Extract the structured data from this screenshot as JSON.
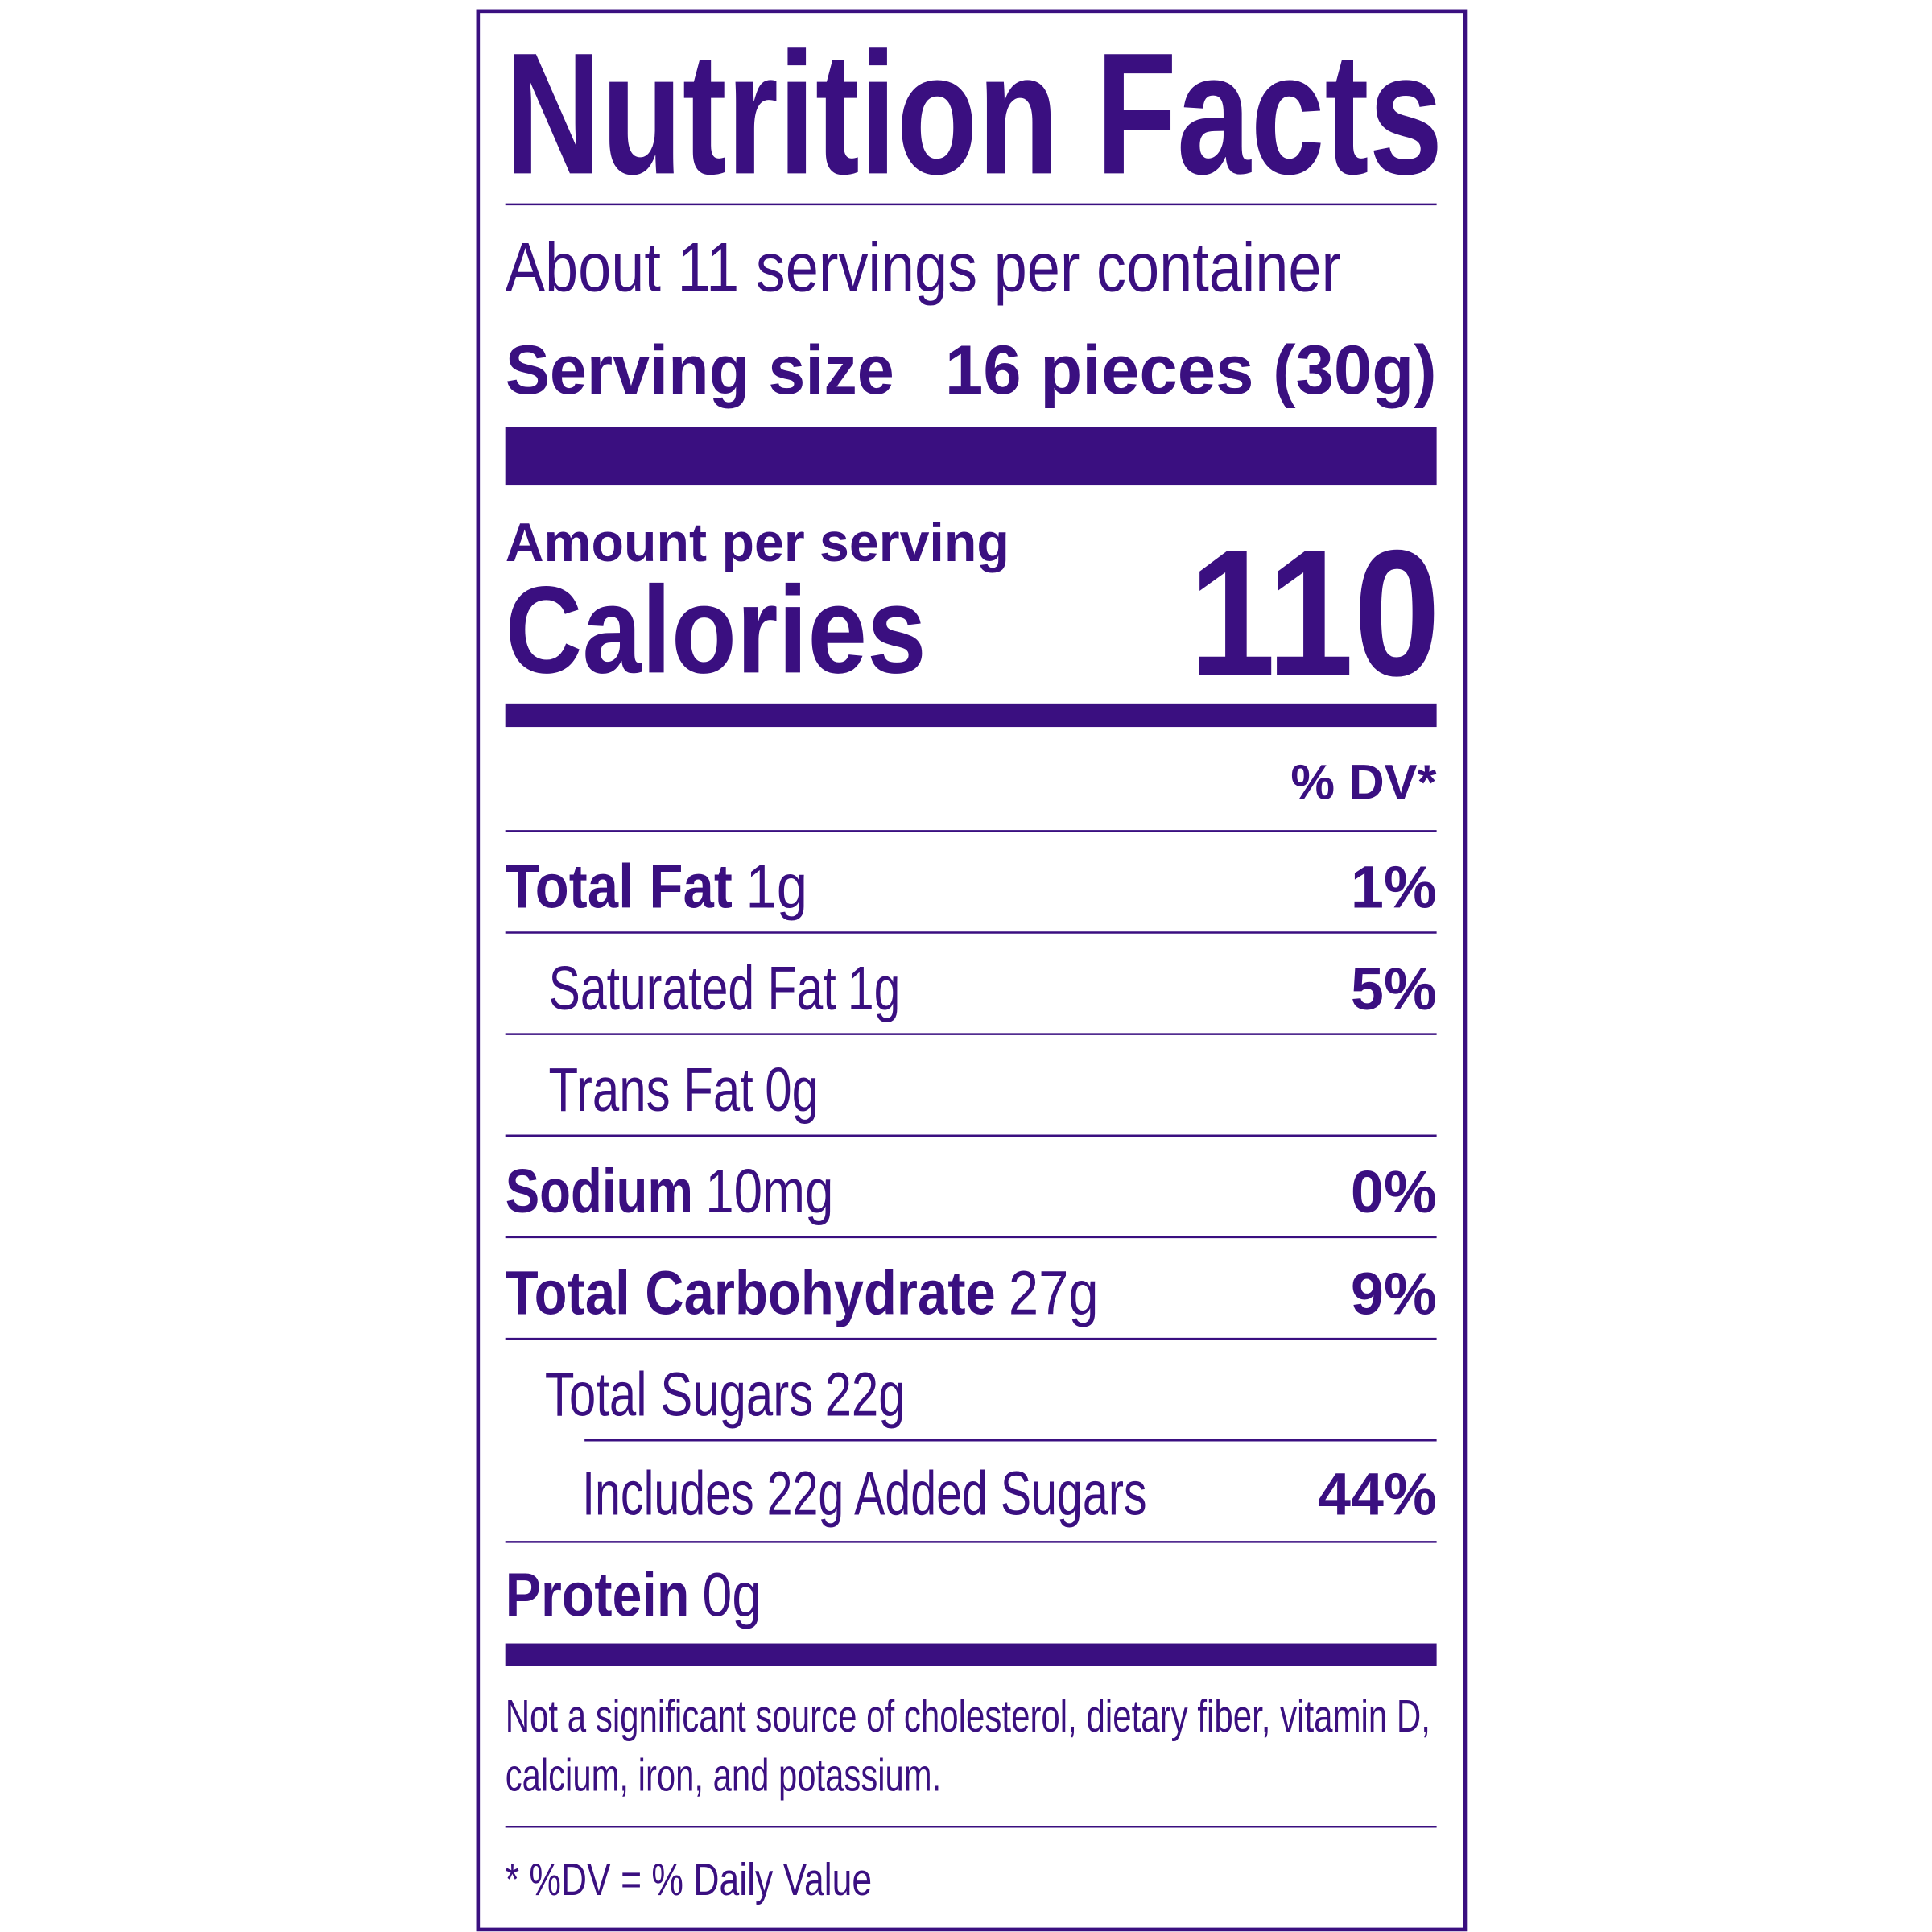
{
  "header": {
    "title": "Nutrition Facts",
    "servings": "About 11 servings per container",
    "serving_size_label": "Serving size",
    "serving_size_value": "16 pieces (30g)"
  },
  "calories": {
    "amount_label": "Amount per serving",
    "label": "Calories",
    "value": 110
  },
  "dv_header": "% DV*",
  "nutrients": [
    {
      "name": "Total Fat",
      "amount": "1g",
      "dv": "1%"
    },
    {
      "name": "Saturated Fat",
      "amount": "1g",
      "dv": "5%"
    },
    {
      "name": "Trans Fat",
      "amount": "0g"
    },
    {
      "name": "Sodium",
      "amount": "10mg",
      "dv": "0%"
    },
    {
      "name": "Total Carbohydrate",
      "amount": "27g",
      "dv": "9%"
    },
    {
      "name": "Total Sugars",
      "amount": "22g"
    },
    {
      "name": "Includes 22g Added Sugars",
      "dv": "44%"
    },
    {
      "name": "Protein",
      "amount": "0g"
    }
  ],
  "footnote": [
    "Not a significant source of cholesterol, dietary fiber, vitamin D,",
    "calcium, iron, and potassium."
  ],
  "dv_note": "* %DV = % Daily Value"
}
